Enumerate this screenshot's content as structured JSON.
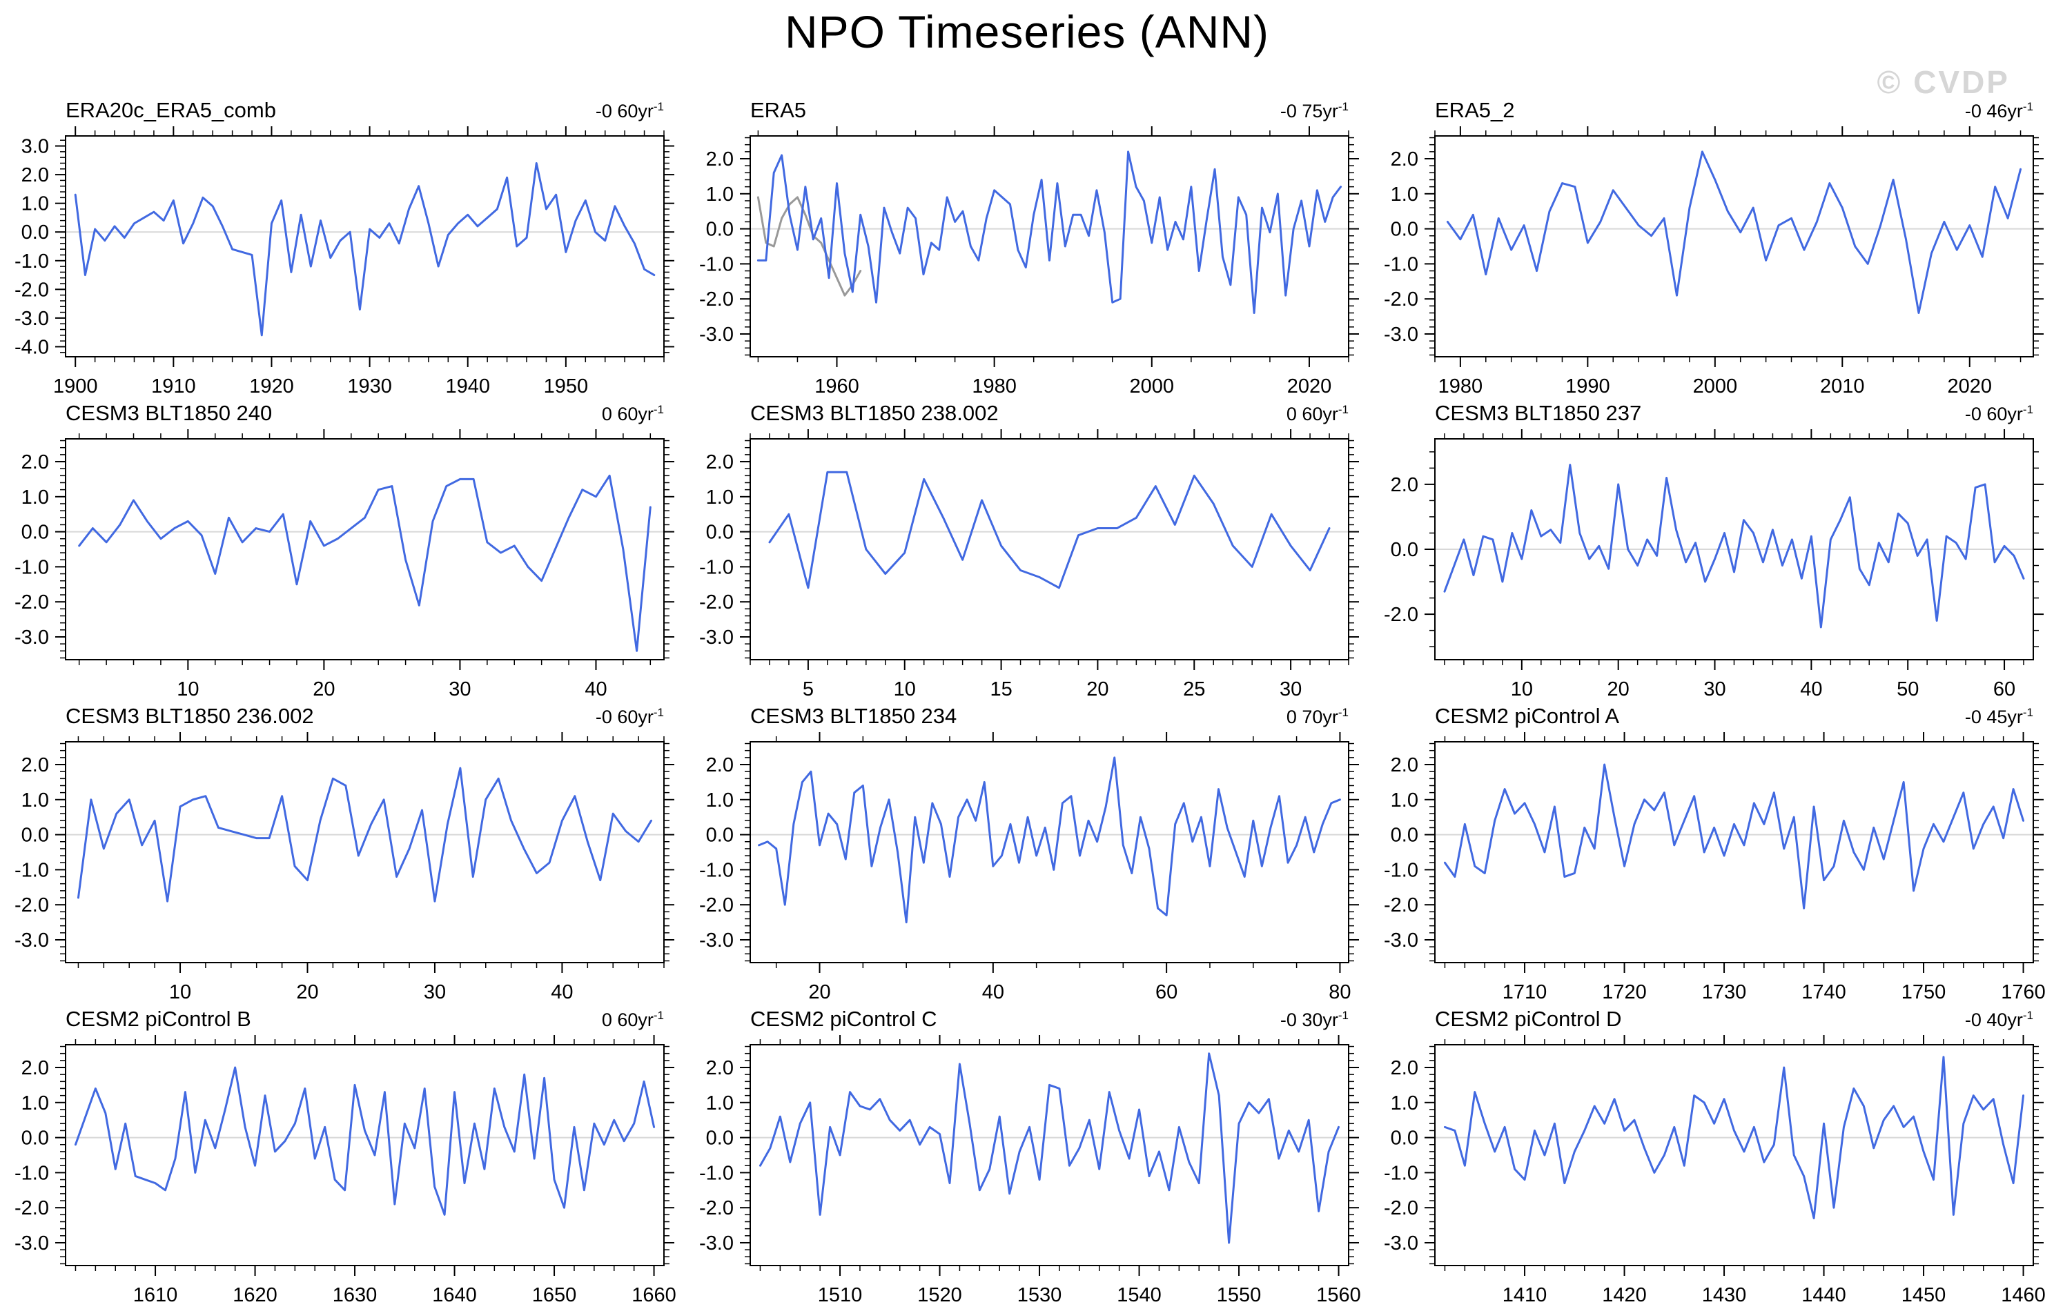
{
  "page": {
    "title": "NPO Timeseries (ANN)",
    "watermark": "© CVDP"
  },
  "style": {
    "line_color": "#4169E1",
    "secondary_line_color": "#999999",
    "zero_line_color": "#d8d8d8",
    "axis_color": "#000000"
  },
  "chart_data": [
    {
      "type": "line",
      "title": "ERA20c_ERA5_comb",
      "trend": "-0 60yr",
      "trend_exp": "-1",
      "xlabel": "",
      "ylabel": "",
      "xlim": [
        1899,
        1960
      ],
      "ylim": [
        -4.35,
        3.35
      ],
      "xticks": [
        1900,
        1910,
        1920,
        1930,
        1940,
        1950
      ],
      "x_minor": 2,
      "yticks": [
        3,
        2,
        1,
        0,
        -1,
        -2,
        -3,
        -4
      ],
      "ytick_labels": [
        "3.0",
        "2.0",
        "1.0",
        "0.0",
        "-1.0",
        "-2.0",
        "-3.0",
        "-4.0"
      ],
      "y_minor": 0.2,
      "x_start": 1900,
      "values": [
        1.3,
        -1.5,
        0.1,
        -0.3,
        0.2,
        -0.2,
        0.3,
        0.5,
        0.7,
        0.4,
        1.1,
        -0.4,
        0.3,
        1.2,
        0.9,
        0.2,
        -0.6,
        -0.7,
        -0.8,
        -3.6,
        0.3,
        1.1,
        -1.4,
        0.6,
        -1.2,
        0.4,
        -0.9,
        -0.3,
        0.0,
        -2.7,
        0.1,
        -0.2,
        0.3,
        -0.4,
        0.8,
        1.6,
        0.3,
        -1.2,
        -0.1,
        0.3,
        0.6,
        0.2,
        0.5,
        0.8,
        1.9,
        -0.5,
        -0.2,
        2.4,
        0.8,
        1.3,
        -0.7,
        0.4,
        1.1,
        0.0,
        -0.3,
        0.9,
        0.2,
        -0.4,
        -1.3,
        -1.5
      ]
    },
    {
      "type": "line",
      "title": "ERA5",
      "trend": "-0 75yr",
      "trend_exp": "-1",
      "xlabel": "",
      "ylabel": "",
      "xlim": [
        1949,
        2025
      ],
      "ylim": [
        -3.65,
        2.65
      ],
      "xticks": [
        1960,
        1980,
        2000,
        2020
      ],
      "x_minor": 5,
      "yticks": [
        2,
        1,
        0,
        -1,
        -2,
        -3
      ],
      "ytick_labels": [
        "2.0",
        "1.0",
        "0.0",
        "-1.0",
        "-2.0",
        "-3.0"
      ],
      "y_minor": 0.2,
      "x_start": 1950,
      "values": [
        -0.9,
        -0.9,
        1.6,
        2.1,
        0.4,
        -0.6,
        1.2,
        -0.3,
        0.3,
        -1.4,
        1.3,
        -0.7,
        -1.8,
        0.4,
        -0.5,
        -2.1,
        0.6,
        -0.1,
        -0.7,
        0.6,
        0.3,
        -1.3,
        -0.4,
        -0.6,
        0.9,
        0.2,
        0.5,
        -0.5,
        -0.9,
        0.3,
        1.1,
        0.9,
        0.7,
        -0.6,
        -1.1,
        0.4,
        1.4,
        -0.9,
        1.3,
        -0.5,
        0.4,
        0.4,
        -0.2,
        1.1,
        -0.1,
        -2.1,
        -2.0,
        2.2,
        1.2,
        0.8,
        -0.4,
        0.9,
        -0.6,
        0.2,
        -0.3,
        1.2,
        -1.2,
        0.3,
        1.7,
        -0.8,
        -1.6,
        0.9,
        0.4,
        -2.4,
        0.6,
        -0.1,
        1.0,
        -1.9,
        0.0,
        0.8,
        -0.5,
        1.1,
        0.2,
        0.9,
        1.2
      ],
      "series2": {
        "name": "overlap-segment",
        "x_start": 1950,
        "values": [
          0.9,
          -0.4,
          -0.5,
          0.3,
          0.7,
          0.9,
          0.4,
          -0.2,
          -0.4,
          -0.9,
          -1.4,
          -1.9,
          -1.6,
          -1.2
        ]
      }
    },
    {
      "type": "line",
      "title": "ERA5_2",
      "trend": "-0 46yr",
      "trend_exp": "-1",
      "xlabel": "",
      "ylabel": "",
      "xlim": [
        1978,
        2025
      ],
      "ylim": [
        -3.65,
        2.65
      ],
      "xticks": [
        1980,
        1990,
        2000,
        2010,
        2020
      ],
      "x_minor": 2,
      "yticks": [
        2,
        1,
        0,
        -1,
        -2,
        -3
      ],
      "ytick_labels": [
        "2.0",
        "1.0",
        "0.0",
        "-1.0",
        "-2.0",
        "-3.0"
      ],
      "y_minor": 0.2,
      "x_start": 1979,
      "values": [
        0.2,
        -0.3,
        0.4,
        -1.3,
        0.3,
        -0.6,
        0.1,
        -1.2,
        0.5,
        1.3,
        1.2,
        -0.4,
        0.2,
        1.1,
        0.6,
        0.1,
        -0.2,
        0.3,
        -1.9,
        0.6,
        2.2,
        1.4,
        0.5,
        -0.1,
        0.6,
        -0.9,
        0.1,
        0.3,
        -0.6,
        0.2,
        1.3,
        0.6,
        -0.5,
        -1.0,
        0.1,
        1.4,
        -0.3,
        -2.4,
        -0.7,
        0.2,
        -0.6,
        0.1,
        -0.8,
        1.2,
        0.3,
        1.7
      ]
    },
    {
      "type": "line",
      "title": "CESM3 BLT1850 240",
      "trend": "0 60yr",
      "trend_exp": "-1",
      "xlabel": "",
      "ylabel": "",
      "xlim": [
        1,
        45
      ],
      "ylim": [
        -3.65,
        2.65
      ],
      "xticks": [
        10,
        20,
        30,
        40
      ],
      "x_minor": 2,
      "yticks": [
        2,
        1,
        0,
        -1,
        -2,
        -3
      ],
      "ytick_labels": [
        "2.0",
        "1.0",
        "0.0",
        "-1.0",
        "-2.0",
        "-3.0"
      ],
      "y_minor": 0.2,
      "x_start": 2,
      "values": [
        -0.4,
        0.1,
        -0.3,
        0.2,
        0.9,
        0.3,
        -0.2,
        0.1,
        0.3,
        -0.1,
        -1.2,
        0.4,
        -0.3,
        0.1,
        0.0,
        0.5,
        -1.5,
        0.3,
        -0.4,
        -0.2,
        0.1,
        0.4,
        1.2,
        1.3,
        -0.8,
        -2.1,
        0.3,
        1.3,
        1.5,
        1.5,
        -0.3,
        -0.6,
        -0.4,
        -1.0,
        -1.4,
        -0.5,
        0.4,
        1.2,
        1.0,
        1.6,
        -0.5,
        -3.4,
        0.7
      ]
    },
    {
      "type": "line",
      "title": "CESM3 BLT1850 238.002",
      "trend": "0 60yr",
      "trend_exp": "-1",
      "xlabel": "",
      "ylabel": "",
      "xlim": [
        2,
        33
      ],
      "ylim": [
        -3.65,
        2.65
      ],
      "xticks": [
        5,
        10,
        15,
        20,
        25,
        30
      ],
      "x_minor": 1,
      "yticks": [
        2,
        1,
        0,
        -1,
        -2,
        -3
      ],
      "ytick_labels": [
        "2.0",
        "1.0",
        "0.0",
        "-1.0",
        "-2.0",
        "-3.0"
      ],
      "y_minor": 0.2,
      "x_start": 3,
      "values": [
        -0.3,
        0.5,
        -1.6,
        1.7,
        1.7,
        -0.5,
        -1.2,
        -0.6,
        1.5,
        0.4,
        -0.8,
        0.9,
        -0.4,
        -1.1,
        -1.3,
        -1.6,
        -0.1,
        0.1,
        0.1,
        0.4,
        1.3,
        0.2,
        1.6,
        0.8,
        -0.4,
        -1.0,
        0.5,
        -0.4,
        -1.1,
        0.1
      ]
    },
    {
      "type": "line",
      "title": "CESM3 BLT1850 237",
      "trend": "-0 60yr",
      "trend_exp": "-1",
      "xlabel": "",
      "ylabel": "",
      "xlim": [
        1,
        63
      ],
      "ylim": [
        -3.4,
        3.4
      ],
      "xticks": [
        10,
        20,
        30,
        40,
        50,
        60
      ],
      "x_minor": 2,
      "yticks": [
        2,
        0,
        -2
      ],
      "ytick_labels": [
        "2.0",
        "0.0",
        "-2.0"
      ],
      "y_minor": 0.5,
      "x_start": 2,
      "values": [
        -1.3,
        -0.5,
        0.3,
        -0.8,
        0.4,
        0.3,
        -1.0,
        0.5,
        -0.3,
        1.2,
        0.4,
        0.6,
        0.2,
        2.6,
        0.5,
        -0.3,
        0.1,
        -0.6,
        2.0,
        0.0,
        -0.5,
        0.3,
        -0.2,
        2.2,
        0.6,
        -0.4,
        0.2,
        -1.0,
        -0.3,
        0.5,
        -0.7,
        0.9,
        0.5,
        -0.4,
        0.6,
        -0.5,
        0.3,
        -0.9,
        0.4,
        -2.4,
        0.3,
        0.9,
        1.6,
        -0.6,
        -1.1,
        0.2,
        -0.4,
        1.1,
        0.8,
        -0.2,
        0.3,
        -2.2,
        0.4,
        0.2,
        -0.3,
        1.9,
        2.0,
        -0.4,
        0.1,
        -0.2,
        -0.9
      ]
    },
    {
      "type": "line",
      "title": "CESM3 BLT1850 236.002",
      "trend": "-0 60yr",
      "trend_exp": "-1",
      "xlabel": "",
      "ylabel": "",
      "xlim": [
        1,
        48
      ],
      "ylim": [
        -3.65,
        2.65
      ],
      "xticks": [
        10,
        20,
        30,
        40
      ],
      "x_minor": 2,
      "yticks": [
        2,
        1,
        0,
        -1,
        -2,
        -3
      ],
      "ytick_labels": [
        "2.0",
        "1.0",
        "0.0",
        "-1.0",
        "-2.0",
        "-3.0"
      ],
      "y_minor": 0.2,
      "x_start": 2,
      "values": [
        -1.8,
        1.0,
        -0.4,
        0.6,
        1.0,
        -0.3,
        0.4,
        -1.9,
        0.8,
        1.0,
        1.1,
        0.2,
        0.1,
        0.0,
        -0.1,
        -0.1,
        1.1,
        -0.9,
        -1.3,
        0.4,
        1.6,
        1.4,
        -0.6,
        0.3,
        1.0,
        -1.2,
        -0.4,
        0.7,
        -1.9,
        0.3,
        1.9,
        -1.2,
        1.0,
        1.6,
        0.4,
        -0.4,
        -1.1,
        -0.8,
        0.4,
        1.1,
        -0.2,
        -1.3,
        0.6,
        0.1,
        -0.2,
        0.4
      ]
    },
    {
      "type": "line",
      "title": "CESM3 BLT1850 234",
      "trend": "0 70yr",
      "trend_exp": "-1",
      "xlabel": "",
      "ylabel": "",
      "xlim": [
        12,
        81
      ],
      "ylim": [
        -3.65,
        2.65
      ],
      "xticks": [
        20,
        40,
        60,
        80
      ],
      "x_minor": 5,
      "yticks": [
        2,
        1,
        0,
        -1,
        -2,
        -3
      ],
      "ytick_labels": [
        "2.0",
        "1.0",
        "0.0",
        "-1.0",
        "-2.0",
        "-3.0"
      ],
      "y_minor": 0.2,
      "x_start": 13,
      "values": [
        -0.3,
        -0.2,
        -0.4,
        -2.0,
        0.3,
        1.5,
        1.8,
        -0.3,
        0.6,
        0.3,
        -0.7,
        1.2,
        1.4,
        -0.9,
        0.2,
        1.0,
        -0.5,
        -2.5,
        0.5,
        -0.8,
        0.9,
        0.3,
        -1.2,
        0.5,
        1.0,
        0.4,
        1.5,
        -0.9,
        -0.6,
        0.3,
        -0.8,
        0.5,
        -0.6,
        0.2,
        -1.0,
        0.9,
        1.1,
        -0.6,
        0.4,
        -0.2,
        0.8,
        2.2,
        -0.3,
        -1.1,
        0.5,
        -0.4,
        -2.1,
        -2.3,
        0.3,
        0.9,
        -0.2,
        0.5,
        -0.9,
        1.3,
        0.2,
        -0.5,
        -1.2,
        0.4,
        -0.9,
        0.2,
        1.1,
        -0.8,
        -0.3,
        0.5,
        -0.5,
        0.3,
        0.9,
        1.0
      ]
    },
    {
      "type": "line",
      "title": "CESM2 piControl A",
      "trend": "-0 45yr",
      "trend_exp": "-1",
      "xlabel": "",
      "ylabel": "",
      "xlim": [
        1701,
        1761
      ],
      "ylim": [
        -3.65,
        2.65
      ],
      "xticks": [
        1710,
        1720,
        1730,
        1740,
        1750,
        1760
      ],
      "x_minor": 2,
      "yticks": [
        2,
        1,
        0,
        -1,
        -2,
        -3
      ],
      "ytick_labels": [
        "2.0",
        "1.0",
        "0.0",
        "-1.0",
        "-2.0",
        "-3.0"
      ],
      "y_minor": 0.2,
      "x_start": 1702,
      "values": [
        -0.8,
        -1.2,
        0.3,
        -0.9,
        -1.1,
        0.4,
        1.3,
        0.6,
        0.9,
        0.3,
        -0.5,
        0.8,
        -1.2,
        -1.1,
        0.2,
        -0.4,
        2.0,
        0.5,
        -0.9,
        0.3,
        1.0,
        0.7,
        1.2,
        -0.3,
        0.4,
        1.1,
        -0.5,
        0.2,
        -0.6,
        0.3,
        -0.3,
        0.9,
        0.3,
        1.2,
        -0.4,
        0.5,
        -2.1,
        0.8,
        -1.3,
        -0.9,
        0.4,
        -0.5,
        -1.0,
        0.2,
        -0.7,
        0.4,
        1.5,
        -1.6,
        -0.4,
        0.3,
        -0.2,
        0.5,
        1.2,
        -0.4,
        0.3,
        0.8,
        -0.1,
        1.3,
        0.4
      ]
    },
    {
      "type": "line",
      "title": "CESM2 piControl B",
      "trend": "0 60yr",
      "trend_exp": "-1",
      "xlabel": "",
      "ylabel": "",
      "xlim": [
        1601,
        1661
      ],
      "ylim": [
        -3.65,
        2.65
      ],
      "xticks": [
        1610,
        1620,
        1630,
        1640,
        1650,
        1660
      ],
      "x_minor": 2,
      "yticks": [
        2,
        1,
        0,
        -1,
        -2,
        -3
      ],
      "ytick_labels": [
        "2.0",
        "1.0",
        "0.0",
        "-1.0",
        "-2.0",
        "-3.0"
      ],
      "y_minor": 0.2,
      "x_start": 1602,
      "values": [
        -0.2,
        0.6,
        1.4,
        0.7,
        -0.9,
        0.4,
        -1.1,
        -1.2,
        -1.3,
        -1.5,
        -0.6,
        1.3,
        -1.0,
        0.5,
        -0.3,
        0.8,
        2.0,
        0.3,
        -0.8,
        1.2,
        -0.4,
        -0.1,
        0.4,
        1.4,
        -0.6,
        0.3,
        -1.2,
        -1.5,
        1.5,
        0.2,
        -0.5,
        1.3,
        -1.9,
        0.4,
        -0.3,
        1.4,
        -1.4,
        -2.2,
        1.3,
        -1.3,
        0.4,
        -0.9,
        1.4,
        0.3,
        -0.4,
        1.8,
        -0.6,
        1.7,
        -1.2,
        -2.0,
        0.3,
        -1.5,
        0.4,
        -0.2,
        0.5,
        -0.1,
        0.4,
        1.6,
        0.3
      ]
    },
    {
      "type": "line",
      "title": "CESM2 piControl C",
      "trend": "-0 30yr",
      "trend_exp": "-1",
      "xlabel": "",
      "ylabel": "",
      "xlim": [
        1501,
        1561
      ],
      "ylim": [
        -3.65,
        2.65
      ],
      "xticks": [
        1510,
        1520,
        1530,
        1540,
        1550,
        1560
      ],
      "x_minor": 2,
      "yticks": [
        2,
        1,
        0,
        -1,
        -2,
        -3
      ],
      "ytick_labels": [
        "2.0",
        "1.0",
        "0.0",
        "-1.0",
        "-2.0",
        "-3.0"
      ],
      "y_minor": 0.2,
      "x_start": 1502,
      "values": [
        -0.8,
        -0.3,
        0.6,
        -0.7,
        0.4,
        1.0,
        -2.2,
        0.3,
        -0.5,
        1.3,
        0.9,
        0.8,
        1.1,
        0.5,
        0.2,
        0.5,
        -0.2,
        0.3,
        0.1,
        -1.3,
        2.1,
        0.4,
        -1.5,
        -0.9,
        0.6,
        -1.6,
        -0.4,
        0.3,
        -1.2,
        1.5,
        1.4,
        -0.8,
        -0.3,
        0.5,
        -0.9,
        1.3,
        0.2,
        -0.6,
        0.8,
        -1.1,
        -0.4,
        -1.5,
        0.3,
        -0.7,
        -1.3,
        2.4,
        1.2,
        -3.0,
        0.4,
        1.0,
        0.7,
        1.1,
        -0.6,
        0.2,
        -0.4,
        0.5,
        -2.1,
        -0.4,
        0.3
      ]
    },
    {
      "type": "line",
      "title": "CESM2 piControl D",
      "trend": "-0 40yr",
      "trend_exp": "-1",
      "xlabel": "",
      "ylabel": "",
      "xlim": [
        1401,
        1461
      ],
      "ylim": [
        -3.65,
        2.65
      ],
      "xticks": [
        1410,
        1420,
        1430,
        1440,
        1450,
        1460
      ],
      "x_minor": 2,
      "yticks": [
        2,
        1,
        0,
        -1,
        -2,
        -3
      ],
      "ytick_labels": [
        "2.0",
        "1.0",
        "0.0",
        "-1.0",
        "-2.0",
        "-3.0"
      ],
      "y_minor": 0.2,
      "x_start": 1402,
      "values": [
        0.3,
        0.2,
        -0.8,
        1.3,
        0.4,
        -0.4,
        0.3,
        -0.9,
        -1.2,
        0.2,
        -0.5,
        0.4,
        -1.3,
        -0.4,
        0.2,
        0.9,
        0.4,
        1.1,
        0.2,
        0.5,
        -0.3,
        -1.0,
        -0.5,
        0.3,
        -0.8,
        1.2,
        1.0,
        0.4,
        1.1,
        0.2,
        -0.4,
        0.3,
        -0.7,
        -0.2,
        2.0,
        -0.5,
        -1.1,
        -2.3,
        0.4,
        -2.0,
        0.3,
        1.4,
        0.9,
        -0.3,
        0.5,
        0.9,
        0.3,
        0.6,
        -0.4,
        -1.2,
        2.3,
        -2.2,
        0.4,
        1.2,
        0.8,
        1.1,
        -0.2,
        -1.3,
        1.2
      ]
    }
  ]
}
